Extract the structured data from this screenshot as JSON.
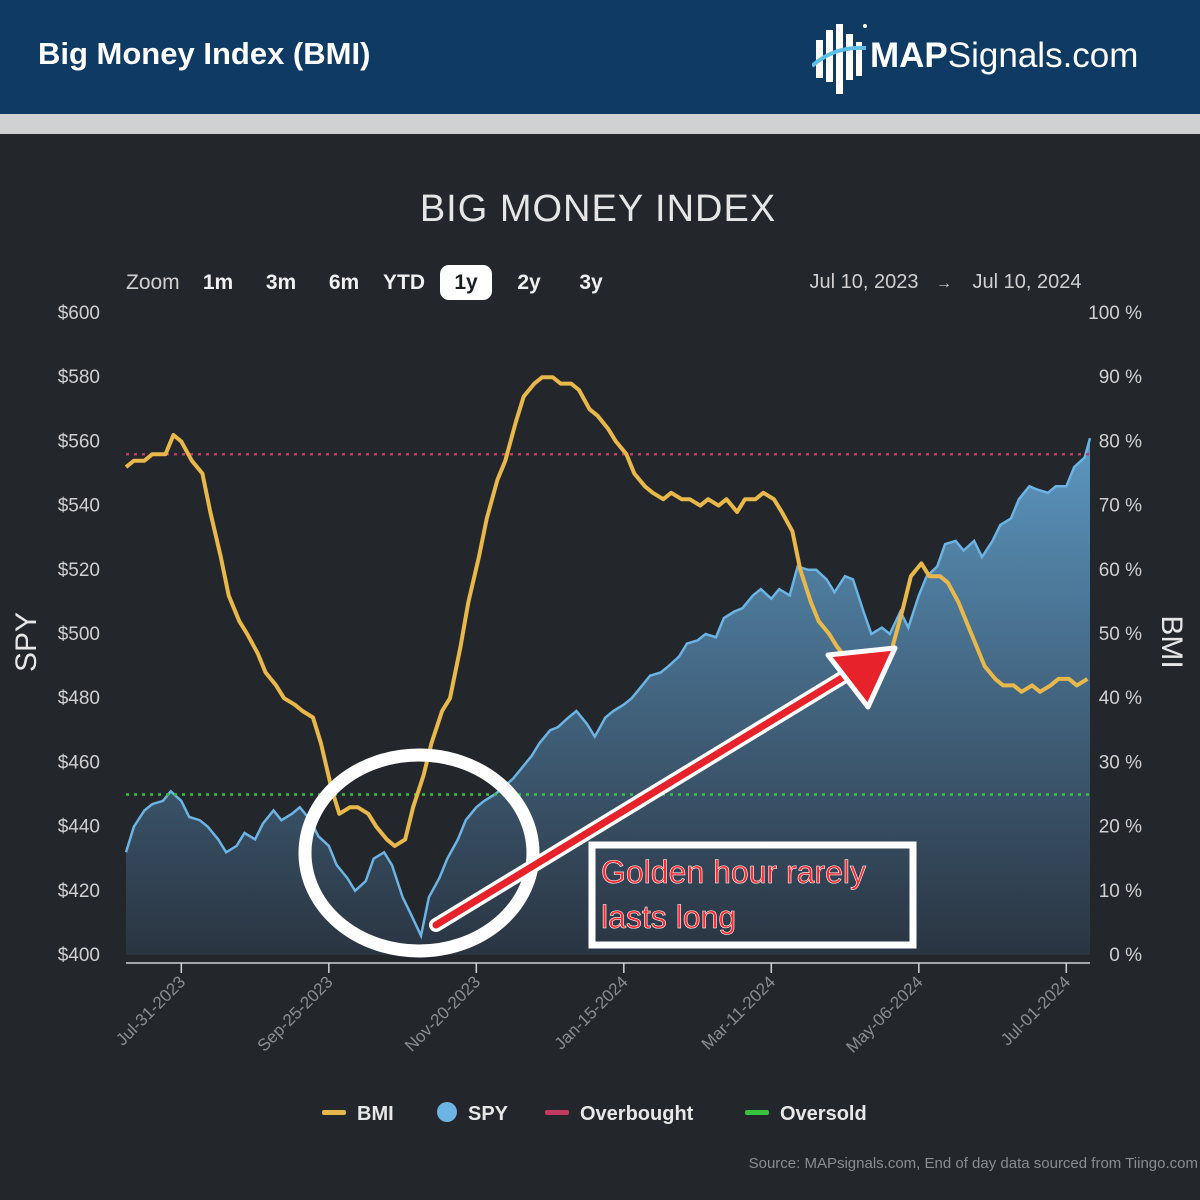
{
  "header": {
    "title": "Big Money Index (BMI)",
    "brand_bold": "MAP",
    "brand_rest": "Signals.com"
  },
  "zoom": {
    "label": "Zoom",
    "options": [
      "1m",
      "3m",
      "6m",
      "YTD",
      "1y",
      "2y",
      "3y"
    ],
    "selected": "1y"
  },
  "range": {
    "from": "Jul 10, 2023",
    "arrow": "→",
    "to": "Jul 10, 2024"
  },
  "annotation": {
    "line1": "Golden hour rarely",
    "line2": "lasts long"
  },
  "source": "Source: MAPsignals.com, End of day data sourced from Tiingo.com",
  "colors": {
    "bmi": "#e8b84a",
    "spy": "#6cb4e4",
    "overbought": "#c4395f",
    "oversold": "#35c43c",
    "annotation": "#e8222a"
  },
  "chart_data": {
    "type": "line",
    "title": "BIG MONEY INDEX",
    "y_left_label": "SPY",
    "y_right_label": "BMI",
    "y_left_range": [
      400,
      600
    ],
    "y_right_range": [
      0,
      100
    ],
    "y_left_ticks": [
      "$600",
      "$580",
      "$560",
      "$540",
      "$520",
      "$500",
      "$480",
      "$460",
      "$440",
      "$420",
      "$400"
    ],
    "y_right_ticks": [
      "100 %",
      "90 %",
      "80 %",
      "70 %",
      "60 %",
      "50 %",
      "40 %",
      "30 %",
      "20 %",
      "10 %",
      "0 %"
    ],
    "x_range": [
      "2023-07-10",
      "2024-07-10"
    ],
    "x_ticks": [
      {
        "date": "2023-07-31",
        "label": "Jul-31-2023"
      },
      {
        "date": "2023-09-25",
        "label": "Sep-25-2023"
      },
      {
        "date": "2023-11-20",
        "label": "Nov-20-2023"
      },
      {
        "date": "2024-01-15",
        "label": "Jan-15-2024"
      },
      {
        "date": "2024-03-11",
        "label": "Mar-11-2024"
      },
      {
        "date": "2024-05-06",
        "label": "May-06-2024"
      },
      {
        "date": "2024-07-01",
        "label": "Jul-01-2024"
      }
    ],
    "legend": [
      "BMI",
      "SPY",
      "Overbought",
      "Oversold"
    ],
    "legend_placement": "bottom",
    "overbought_level": 78,
    "oversold_level": 25,
    "series": [
      {
        "name": "BMI",
        "axis": "right",
        "points": [
          [
            "2023-07-10",
            76
          ],
          [
            "2023-07-13",
            77
          ],
          [
            "2023-07-17",
            77
          ],
          [
            "2023-07-20",
            78
          ],
          [
            "2023-07-25",
            78
          ],
          [
            "2023-07-28",
            81
          ],
          [
            "2023-07-31",
            80
          ],
          [
            "2023-08-04",
            77
          ],
          [
            "2023-08-08",
            75
          ],
          [
            "2023-08-11",
            69
          ],
          [
            "2023-08-15",
            62
          ],
          [
            "2023-08-18",
            56
          ],
          [
            "2023-08-22",
            52
          ],
          [
            "2023-08-25",
            50
          ],
          [
            "2023-08-29",
            47
          ],
          [
            "2023-09-01",
            44
          ],
          [
            "2023-09-05",
            42
          ],
          [
            "2023-09-08",
            40
          ],
          [
            "2023-09-12",
            39
          ],
          [
            "2023-09-15",
            38
          ],
          [
            "2023-09-19",
            37
          ],
          [
            "2023-09-22",
            33
          ],
          [
            "2023-09-26",
            26
          ],
          [
            "2023-09-29",
            22
          ],
          [
            "2023-10-03",
            23
          ],
          [
            "2023-10-06",
            23
          ],
          [
            "2023-10-10",
            22
          ],
          [
            "2023-10-13",
            20
          ],
          [
            "2023-10-17",
            18
          ],
          [
            "2023-10-20",
            17
          ],
          [
            "2023-10-24",
            18
          ],
          [
            "2023-10-27",
            23
          ],
          [
            "2023-10-31",
            28
          ],
          [
            "2023-11-03",
            33
          ],
          [
            "2023-11-07",
            38
          ],
          [
            "2023-11-10",
            40
          ],
          [
            "2023-11-14",
            48
          ],
          [
            "2023-11-17",
            55
          ],
          [
            "2023-11-21",
            62
          ],
          [
            "2023-11-24",
            68
          ],
          [
            "2023-11-28",
            74
          ],
          [
            "2023-12-01",
            77
          ],
          [
            "2023-12-05",
            83
          ],
          [
            "2023-12-08",
            87
          ],
          [
            "2023-12-12",
            89
          ],
          [
            "2023-12-15",
            90
          ],
          [
            "2023-12-19",
            90
          ],
          [
            "2023-12-22",
            89
          ],
          [
            "2023-12-26",
            89
          ],
          [
            "2023-12-29",
            88
          ],
          [
            "2024-01-02",
            85
          ],
          [
            "2024-01-05",
            84
          ],
          [
            "2024-01-09",
            82
          ],
          [
            "2024-01-12",
            80
          ],
          [
            "2024-01-16",
            78
          ],
          [
            "2024-01-19",
            75
          ],
          [
            "2024-01-23",
            73
          ],
          [
            "2024-01-26",
            72
          ],
          [
            "2024-01-30",
            71
          ],
          [
            "2024-02-02",
            72
          ],
          [
            "2024-02-06",
            71
          ],
          [
            "2024-02-09",
            71
          ],
          [
            "2024-02-13",
            70
          ],
          [
            "2024-02-16",
            71
          ],
          [
            "2024-02-20",
            70
          ],
          [
            "2024-02-23",
            71
          ],
          [
            "2024-02-27",
            69
          ],
          [
            "2024-03-01",
            71
          ],
          [
            "2024-03-05",
            71
          ],
          [
            "2024-03-08",
            72
          ],
          [
            "2024-03-12",
            71
          ],
          [
            "2024-03-15",
            69
          ],
          [
            "2024-03-19",
            66
          ],
          [
            "2024-03-22",
            60
          ],
          [
            "2024-03-26",
            55
          ],
          [
            "2024-03-29",
            52
          ],
          [
            "2024-04-02",
            50
          ],
          [
            "2024-04-05",
            48
          ],
          [
            "2024-04-09",
            46
          ],
          [
            "2024-04-12",
            44
          ],
          [
            "2024-04-16",
            44
          ],
          [
            "2024-04-19",
            45
          ],
          [
            "2024-04-23",
            45
          ],
          [
            "2024-04-26",
            48
          ],
          [
            "2024-04-30",
            54
          ],
          [
            "2024-05-03",
            59
          ],
          [
            "2024-05-07",
            61
          ],
          [
            "2024-05-10",
            59
          ],
          [
            "2024-05-14",
            59
          ],
          [
            "2024-05-17",
            58
          ],
          [
            "2024-05-21",
            55
          ],
          [
            "2024-05-24",
            52
          ],
          [
            "2024-05-28",
            48
          ],
          [
            "2024-05-31",
            45
          ],
          [
            "2024-06-04",
            43
          ],
          [
            "2024-06-07",
            42
          ],
          [
            "2024-06-11",
            42
          ],
          [
            "2024-06-14",
            41
          ],
          [
            "2024-06-18",
            42
          ],
          [
            "2024-06-21",
            41
          ],
          [
            "2024-06-25",
            42
          ],
          [
            "2024-06-28",
            43
          ],
          [
            "2024-07-02",
            43
          ],
          [
            "2024-07-05",
            42
          ],
          [
            "2024-07-09",
            43
          ]
        ]
      },
      {
        "name": "SPY",
        "axis": "left",
        "points": [
          [
            "2023-07-10",
            432
          ],
          [
            "2023-07-13",
            440
          ],
          [
            "2023-07-17",
            445
          ],
          [
            "2023-07-20",
            447
          ],
          [
            "2023-07-24",
            448
          ],
          [
            "2023-07-27",
            451
          ],
          [
            "2023-07-31",
            448
          ],
          [
            "2023-08-03",
            443
          ],
          [
            "2023-08-07",
            442
          ],
          [
            "2023-08-10",
            440
          ],
          [
            "2023-08-14",
            436
          ],
          [
            "2023-08-17",
            432
          ],
          [
            "2023-08-21",
            434
          ],
          [
            "2023-08-24",
            438
          ],
          [
            "2023-08-28",
            436
          ],
          [
            "2023-08-31",
            441
          ],
          [
            "2023-09-04",
            445
          ],
          [
            "2023-09-07",
            442
          ],
          [
            "2023-09-11",
            444
          ],
          [
            "2023-09-14",
            446
          ],
          [
            "2023-09-18",
            442
          ],
          [
            "2023-09-21",
            437
          ],
          [
            "2023-09-25",
            434
          ],
          [
            "2023-09-28",
            428
          ],
          [
            "2023-10-02",
            424
          ],
          [
            "2023-10-05",
            420
          ],
          [
            "2023-10-09",
            423
          ],
          [
            "2023-10-12",
            430
          ],
          [
            "2023-10-16",
            432
          ],
          [
            "2023-10-19",
            428
          ],
          [
            "2023-10-23",
            418
          ],
          [
            "2023-10-26",
            413
          ],
          [
            "2023-10-30",
            406
          ],
          [
            "2023-11-02",
            418
          ],
          [
            "2023-11-06",
            424
          ],
          [
            "2023-11-09",
            430
          ],
          [
            "2023-11-13",
            436
          ],
          [
            "2023-11-16",
            442
          ],
          [
            "2023-11-20",
            446
          ],
          [
            "2023-11-23",
            448
          ],
          [
            "2023-11-27",
            450
          ],
          [
            "2023-11-30",
            452
          ],
          [
            "2023-12-04",
            455
          ],
          [
            "2023-12-07",
            458
          ],
          [
            "2023-12-11",
            462
          ],
          [
            "2023-12-14",
            466
          ],
          [
            "2023-12-18",
            470
          ],
          [
            "2023-12-21",
            471
          ],
          [
            "2023-12-25",
            474
          ],
          [
            "2023-12-28",
            476
          ],
          [
            "2024-01-01",
            472
          ],
          [
            "2024-01-04",
            468
          ],
          [
            "2024-01-08",
            474
          ],
          [
            "2024-01-11",
            476
          ],
          [
            "2024-01-15",
            478
          ],
          [
            "2024-01-18",
            480
          ],
          [
            "2024-01-22",
            484
          ],
          [
            "2024-01-25",
            487
          ],
          [
            "2024-01-29",
            488
          ],
          [
            "2024-02-01",
            490
          ],
          [
            "2024-02-05",
            493
          ],
          [
            "2024-02-08",
            497
          ],
          [
            "2024-02-12",
            498
          ],
          [
            "2024-02-15",
            500
          ],
          [
            "2024-02-19",
            499
          ],
          [
            "2024-02-22",
            505
          ],
          [
            "2024-02-26",
            507
          ],
          [
            "2024-02-29",
            508
          ],
          [
            "2024-03-04",
            512
          ],
          [
            "2024-03-07",
            514
          ],
          [
            "2024-03-11",
            511
          ],
          [
            "2024-03-14",
            514
          ],
          [
            "2024-03-18",
            512
          ],
          [
            "2024-03-21",
            521
          ],
          [
            "2024-03-25",
            520
          ],
          [
            "2024-03-28",
            520
          ],
          [
            "2024-04-01",
            517
          ],
          [
            "2024-04-04",
            513
          ],
          [
            "2024-04-08",
            518
          ],
          [
            "2024-04-11",
            517
          ],
          [
            "2024-04-15",
            507
          ],
          [
            "2024-04-18",
            500
          ],
          [
            "2024-04-22",
            502
          ],
          [
            "2024-04-25",
            500
          ],
          [
            "2024-04-29",
            507
          ],
          [
            "2024-05-02",
            502
          ],
          [
            "2024-05-06",
            512
          ],
          [
            "2024-05-09",
            518
          ],
          [
            "2024-05-13",
            521
          ],
          [
            "2024-05-16",
            528
          ],
          [
            "2024-05-20",
            529
          ],
          [
            "2024-05-23",
            526
          ],
          [
            "2024-05-27",
            529
          ],
          [
            "2024-05-30",
            524
          ],
          [
            "2024-06-03",
            529
          ],
          [
            "2024-06-06",
            534
          ],
          [
            "2024-06-10",
            536
          ],
          [
            "2024-06-13",
            542
          ],
          [
            "2024-06-17",
            546
          ],
          [
            "2024-06-20",
            545
          ],
          [
            "2024-06-24",
            544
          ],
          [
            "2024-06-27",
            546
          ],
          [
            "2024-07-01",
            546
          ],
          [
            "2024-07-04",
            552
          ],
          [
            "2024-07-08",
            555
          ],
          [
            "2024-07-10",
            561
          ]
        ]
      }
    ]
  }
}
